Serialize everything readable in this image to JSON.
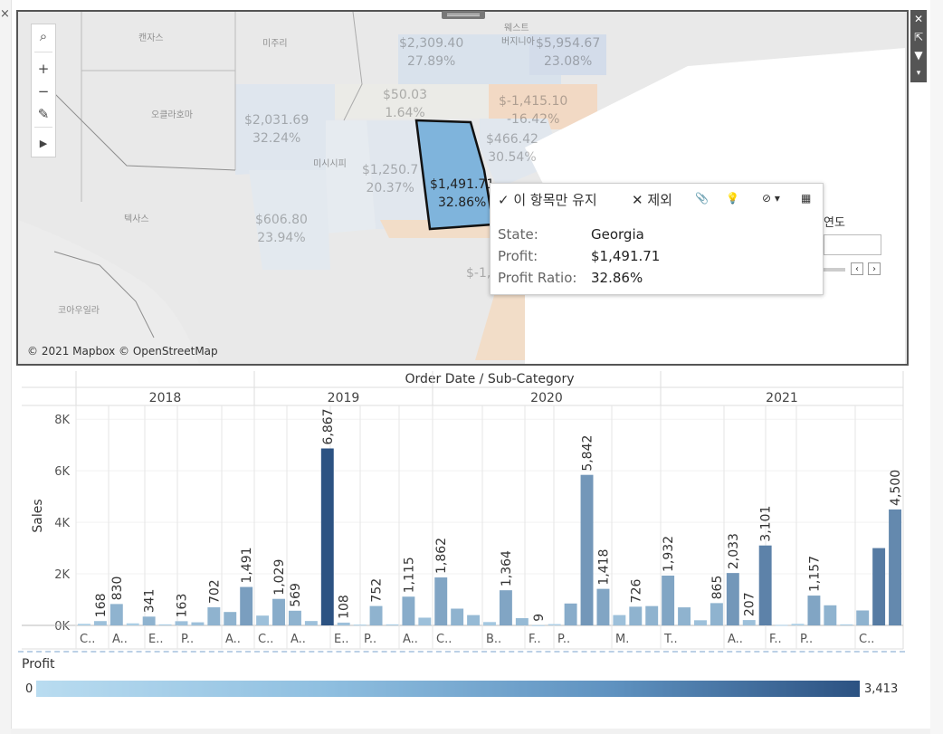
{
  "map": {
    "attribution": "© 2021 Mapbox © OpenStreetMap",
    "labels": [
      {
        "lines": [
          "$2,309.40",
          "27.89%"
        ],
        "selected": false
      },
      {
        "lines": [
          "$5,954.67",
          "23.08%"
        ],
        "selected": false
      },
      {
        "lines": [
          "$50.03",
          "1.64%"
        ],
        "selected": false
      },
      {
        "lines": [
          "$-1,415.10",
          "-16.42%"
        ],
        "selected": false
      },
      {
        "lines": [
          "$2,031.69",
          "32.24%"
        ],
        "selected": false
      },
      {
        "lines": [
          "$466.42",
          "30.54%"
        ],
        "selected": false
      },
      {
        "lines": [
          "$1,250.7",
          "20.37%"
        ],
        "selected": false
      },
      {
        "lines": [
          "$1,491.71",
          "32.86%"
        ],
        "selected": true
      },
      {
        "lines": [
          "$606.80",
          "23.94%"
        ],
        "selected": false
      },
      {
        "lines": [
          "$-1,"
        ],
        "selected": false
      }
    ],
    "places": [
      "캔자스",
      "미주리",
      "웨스트",
      "버지니아",
      "오클라호마",
      "미시시피",
      "텍사스",
      "코아우일라"
    ],
    "toolbar_icons": [
      "search-icon",
      "zoom-in-icon",
      "zoom-out-icon",
      "pin-clear-icon",
      "expand-arrow-icon"
    ],
    "side_icons": [
      "close-icon",
      "popout-icon",
      "filter-icon",
      "more-icon"
    ],
    "year_label": "연도"
  },
  "tooltip": {
    "actions": [
      "✓ 이 항목만 유지",
      "✕ 제외",
      "📎",
      "💡",
      "⊘ ▾",
      "▦"
    ],
    "rows": [
      {
        "label": "State:",
        "value": "Georgia"
      },
      {
        "label": "Profit:",
        "value": "$1,491.71"
      },
      {
        "label": "Profit Ratio:",
        "value": "32.86%"
      }
    ]
  },
  "legend": {
    "title": "Profit",
    "min": "0",
    "max": "3,413"
  },
  "colors": {
    "light": "#b9dcf0",
    "mid": "#7fb3dc",
    "dark": "#2c5282",
    "selected_state": "#7fb4dc",
    "negative": "#f2c9a3",
    "positive": "#c8d8ea"
  },
  "chart_data": {
    "type": "bar",
    "title": "Order Date / Sub-Category",
    "ylabel": "Sales",
    "ylim": [
      0,
      8500
    ],
    "yticks": [
      "0K",
      "2K",
      "4K",
      "6K",
      "8K"
    ],
    "years": [
      "2018",
      "2019",
      "2020",
      "2021"
    ],
    "xlabels": [
      "C..",
      "A..",
      "E..",
      "P..",
      "A..",
      "C..",
      "A..",
      "E..",
      "P..",
      "A..",
      "C..",
      "B..",
      "F..",
      "P..",
      "M.",
      "T..",
      "A..",
      "F..",
      "P..",
      "C.."
    ],
    "values": [
      60,
      168,
      830,
      80,
      341,
      40,
      163,
      120,
      702,
      520,
      1491,
      380,
      1029,
      569,
      170,
      6867,
      108,
      30,
      752,
      40,
      1115,
      300,
      1862,
      650,
      400,
      130,
      1364,
      280,
      9,
      50,
      850,
      5842,
      1418,
      400,
      726,
      750,
      1932,
      700,
      200,
      865,
      2033,
      207,
      3101,
      20,
      60,
      1157,
      780,
      40,
      580,
      3000,
      4500
    ],
    "labels": {
      "1": "168",
      "2": "830",
      "4": "341",
      "6": "163",
      "8": "702",
      "10": "1,491",
      "12": "1,029",
      "13": "569",
      "15": "6,867",
      "16": "108",
      "18": "752",
      "20": "1,115",
      "22": "1,862",
      "26": "1,364",
      "28": "9",
      "31": "5,842",
      "32": "1,418",
      "34": "726",
      "36": "1,932",
      "39": "865",
      "40": "2,033",
      "41": "207",
      "42": "3,101",
      "45": "1,157",
      "50": "4,500"
    },
    "shade": [
      0.1,
      0.2,
      0.3,
      0.1,
      0.3,
      0.1,
      0.2,
      0.2,
      0.3,
      0.3,
      0.45,
      0.2,
      0.35,
      0.3,
      0.2,
      1,
      0.2,
      0.1,
      0.3,
      0.1,
      0.35,
      0.2,
      0.4,
      0.3,
      0.25,
      0.15,
      0.4,
      0.25,
      0.1,
      0.1,
      0.35,
      0.5,
      0.4,
      0.2,
      0.3,
      0.3,
      0.4,
      0.3,
      0.2,
      0.3,
      0.5,
      0.2,
      0.65,
      0.1,
      0.1,
      0.4,
      0.3,
      0.1,
      0.3,
      0.7,
      0.6
    ]
  }
}
